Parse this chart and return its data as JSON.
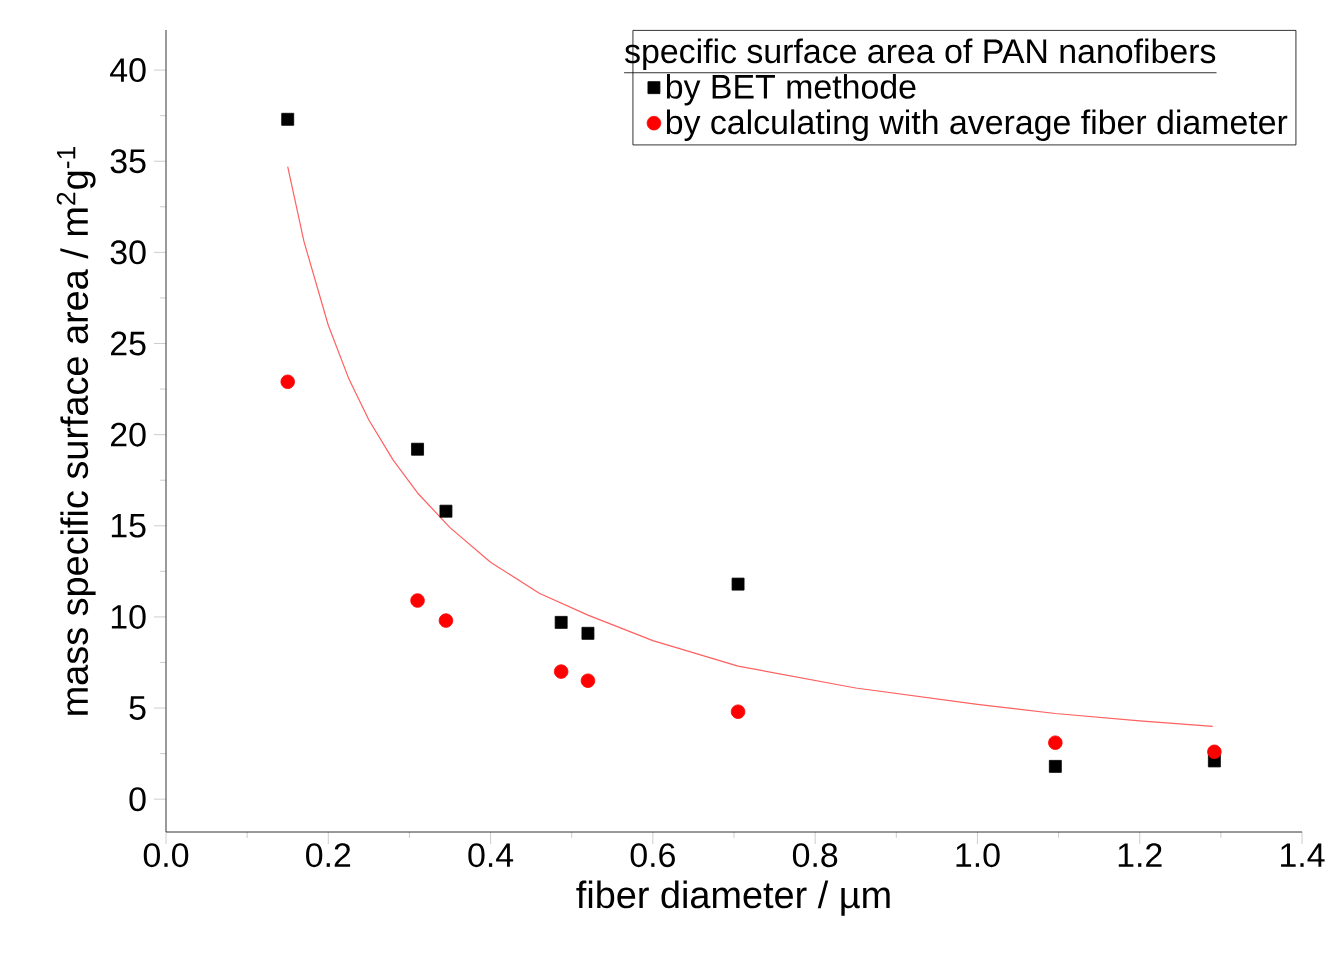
{
  "chart_data": {
    "type": "scatter",
    "xlabel": "fiber diameter / µm",
    "ylabel": "mass specific surface area / m$^{2}$g$^{-1}$",
    "legend_title": "specific surface area of PAN nanofibers",
    "legend": "top right",
    "xlim": [
      0,
      1.4
    ],
    "ylim": [
      -1.8,
      42.2
    ],
    "xticks": [
      {
        "value": 0,
        "label": "0.0"
      },
      0.2,
      0.4,
      0.6,
      0.8,
      {
        "value": 1,
        "label": "1.0"
      },
      1.2,
      1.4
    ],
    "yticks": [
      0,
      5,
      10,
      15,
      20,
      25,
      30,
      35,
      40
    ],
    "series": [
      {
        "name": "by BET methode",
        "marker": "square",
        "color": "#000000",
        "x": [
          0.15,
          0.31,
          0.345,
          0.487,
          0.52,
          0.705,
          1.096,
          1.292
        ],
        "values": [
          37.3,
          19.2,
          15.8,
          9.7,
          9.1,
          11.8,
          1.8,
          2.1
        ]
      },
      {
        "name": "by calculating with average fiber diameter",
        "marker": "circle",
        "color": "#ff0000",
        "x": [
          0.15,
          0.31,
          0.345,
          0.487,
          0.52,
          0.705,
          1.096,
          1.292
        ],
        "values": [
          22.9,
          10.9,
          9.8,
          7.0,
          6.5,
          4.8,
          3.1,
          2.6
        ]
      },
      {
        "type": "line",
        "marker": "none",
        "color": "#ff6060",
        "x": [
          0.15,
          0.17,
          0.2,
          0.225,
          0.25,
          0.28,
          0.31,
          0.35,
          0.4,
          0.46,
          0.52,
          0.6,
          0.705,
          0.85,
          1.0,
          1.096,
          1.2,
          1.29
        ],
        "values": [
          34.7,
          30.6,
          26,
          23.1,
          20.8,
          18.6,
          16.8,
          14.9,
          13,
          11.3,
          10.1,
          8.7,
          7.3,
          6.1,
          5.2,
          4.7,
          4.3,
          4.0
        ]
      }
    ]
  }
}
